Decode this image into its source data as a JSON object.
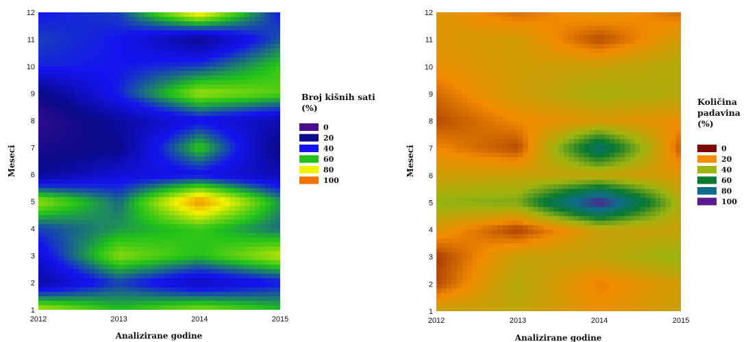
{
  "chart_data": [
    {
      "type": "heatmap",
      "title": "",
      "xlabel": "Analizirane godine",
      "ylabel": "Meseci",
      "x": [
        2012,
        2013,
        2014,
        2015
      ],
      "y": [
        1,
        2,
        3,
        4,
        5,
        6,
        7,
        8,
        9,
        10,
        11,
        12
      ],
      "xlim": [
        2012,
        2015
      ],
      "ylim": [
        1,
        12
      ],
      "x_tick_labels": [
        "2012",
        "2013",
        "2014",
        "2015"
      ],
      "y_tick_labels": [
        "1",
        "2",
        "3",
        "4",
        "5",
        "6",
        "7",
        "8",
        "9",
        "10",
        "11",
        "12"
      ],
      "legend_title": "Broj kišnih sati (%)",
      "legend_title_lines": [
        "Broj kišnih sati",
        "(%)"
      ],
      "legend_position": "right",
      "legend": [
        {
          "label": "0",
          "color": "#4a0e8f"
        },
        {
          "label": "20",
          "color": "#0a0a8a"
        },
        {
          "label": "40",
          "color": "#1414f0"
        },
        {
          "label": "60",
          "color": "#22c21a"
        },
        {
          "label": "80",
          "color": "#f2f200"
        },
        {
          "label": "100",
          "color": "#f07000"
        }
      ],
      "colorscale_values": [
        0,
        20,
        40,
        60,
        80,
        100
      ],
      "z": [
        [
          75,
          60,
          70,
          60
        ],
        [
          25,
          45,
          30,
          40
        ],
        [
          35,
          70,
          60,
          75
        ],
        [
          45,
          55,
          62,
          50
        ],
        [
          72,
          50,
          95,
          55
        ],
        [
          22,
          35,
          38,
          28
        ],
        [
          15,
          20,
          62,
          18
        ],
        [
          8,
          25,
          38,
          28
        ],
        [
          18,
          42,
          72,
          65
        ],
        [
          42,
          40,
          45,
          62
        ],
        [
          45,
          40,
          22,
          48
        ],
        [
          40,
          45,
          85,
          40
        ]
      ]
    },
    {
      "type": "heatmap",
      "title": "",
      "xlabel": "Analizirane godine",
      "ylabel": "Meseci",
      "x": [
        2012,
        2013,
        2014,
        2015
      ],
      "y": [
        1,
        2,
        3,
        4,
        5,
        6,
        7,
        8,
        9,
        10,
        11,
        12
      ],
      "xlim": [
        2012,
        2015
      ],
      "ylim": [
        1,
        12
      ],
      "x_tick_labels": [
        "2012",
        "2013",
        "2014",
        "2015"
      ],
      "y_tick_labels": [
        "1",
        "2",
        "3",
        "4",
        "5",
        "6",
        "7",
        "8",
        "9",
        "10",
        "11",
        "12"
      ],
      "legend_title": "Količina padavina (%)",
      "legend_title_lines": [
        "Količina",
        "padavina",
        "(%)"
      ],
      "legend_position": "right",
      "legend": [
        {
          "label": "0",
          "color": "#7a0a00"
        },
        {
          "label": "20",
          "color": "#f28c00"
        },
        {
          "label": "40",
          "color": "#9fb510"
        },
        {
          "label": "60",
          "color": "#0a7a30"
        },
        {
          "label": "80",
          "color": "#0e6e8a"
        },
        {
          "label": "100",
          "color": "#5a1a90"
        }
      ],
      "colorscale_values": [
        0,
        20,
        40,
        60,
        80,
        100
      ],
      "z": [
        [
          30,
          32,
          22,
          30
        ],
        [
          10,
          35,
          18,
          28
        ],
        [
          8,
          30,
          32,
          42
        ],
        [
          25,
          8,
          30,
          30
        ],
        [
          42,
          45,
          100,
          35
        ],
        [
          28,
          30,
          30,
          25
        ],
        [
          20,
          10,
          75,
          12
        ],
        [
          10,
          20,
          25,
          22
        ],
        [
          15,
          28,
          38,
          35
        ],
        [
          22,
          28,
          30,
          35
        ],
        [
          25,
          28,
          10,
          28
        ],
        [
          25,
          15,
          25,
          15
        ]
      ]
    }
  ]
}
